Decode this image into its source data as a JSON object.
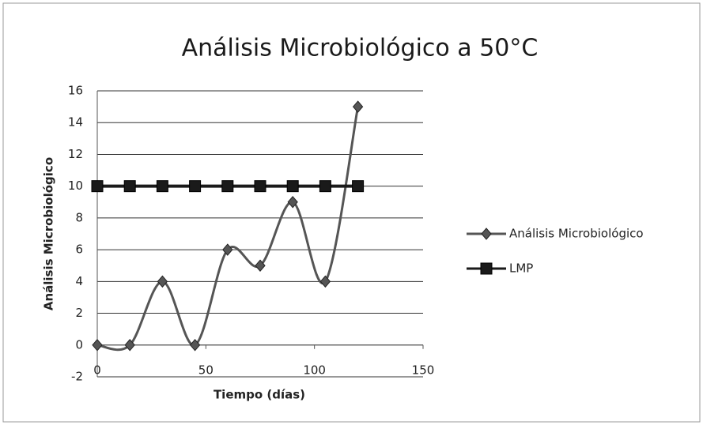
{
  "chart_data": {
    "type": "line",
    "title": "Análisis Microbiológico a 50°C",
    "xlabel": "Tiempo (días)",
    "ylabel": "Análisis  Microbiológico",
    "x": [
      0,
      15,
      30,
      45,
      60,
      75,
      90,
      105,
      120
    ],
    "series": [
      {
        "name": "Análisis Microbiológico",
        "color": "#555555",
        "marker": "diamond",
        "values": [
          0,
          0,
          4,
          0,
          6,
          5,
          9,
          4,
          15
        ]
      },
      {
        "name": "LMP",
        "color": "#1a1a1a",
        "marker": "square",
        "values": [
          10,
          10,
          10,
          10,
          10,
          10,
          10,
          10,
          10
        ]
      }
    ],
    "xlim": [
      0,
      150
    ],
    "xticks": [
      0,
      50,
      100,
      150
    ],
    "ylim": [
      -2,
      16
    ],
    "yticks": [
      -2,
      0,
      2,
      4,
      6,
      8,
      10,
      12,
      14,
      16
    ],
    "grid": true,
    "smooth": true,
    "legend": "right"
  }
}
